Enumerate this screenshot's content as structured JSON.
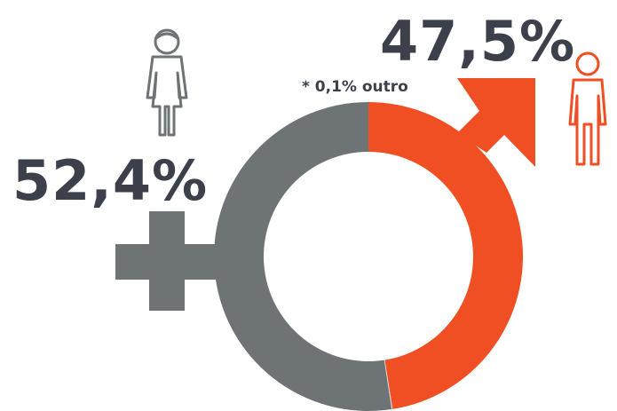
{
  "chart_data": {
    "type": "donut",
    "values": [
      47.5,
      0.1,
      52.4
    ],
    "value_labels": [
      "47,5%",
      "* 0,1% outro",
      "52,4%"
    ],
    "colors": [
      "#f04e23",
      "#d9d9d9",
      "#6e7376"
    ]
  }
}
